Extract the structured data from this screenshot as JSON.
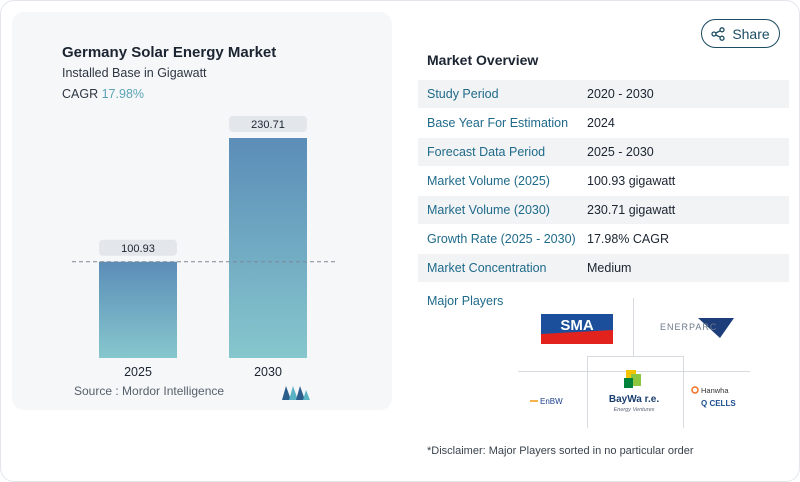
{
  "share": {
    "label": "Share"
  },
  "chart_card": {
    "title": "Germany Solar Energy Market",
    "subtitle": "Installed Base in Gigawatt",
    "cagr_label": "CAGR",
    "cagr_value": "17.98%",
    "source": "Source :  Mordor Intelligence"
  },
  "chart_data": {
    "type": "bar",
    "title": "Germany Solar Energy Market",
    "subtitle": "Installed Base in Gigawatt",
    "categories": [
      "2025",
      "2030"
    ],
    "values": [
      100.93,
      230.71
    ],
    "value_labels": [
      "100.93",
      "230.71"
    ],
    "ylim": [
      0,
      230.71
    ],
    "reference_line": 100.93,
    "grid": false,
    "colors": {
      "bar_top": "#5b8db8",
      "bar_bottom": "#86c7cd"
    }
  },
  "overview": {
    "title": "Market Overview",
    "rows": [
      {
        "label": "Study Period",
        "value": "2020 - 2030"
      },
      {
        "label": "Base Year For Estimation",
        "value": "2024"
      },
      {
        "label": "Forecast Data Period",
        "value": "2025 - 2030"
      },
      {
        "label": "Market Volume (2025)",
        "value": "100.93 gigawatt"
      },
      {
        "label": "Market Volume (2030)",
        "value": "230.71 gigawatt"
      },
      {
        "label": "Growth Rate (2025 - 2030)",
        "value": "17.98% CAGR"
      },
      {
        "label": "Market Concentration",
        "value": "Medium"
      }
    ]
  },
  "players": {
    "label": "Major Players",
    "logos": {
      "sma": "SMA",
      "enerparc": "ENERPARC",
      "enbw": "EnBW",
      "baywa": "BayWa r.e.",
      "baywa_sub": "Energy Ventures",
      "hanwha": "Hanwha",
      "qcells": "Q CELLS"
    }
  },
  "disclaimer": "*Disclaimer: Major Players sorted in no particular order"
}
